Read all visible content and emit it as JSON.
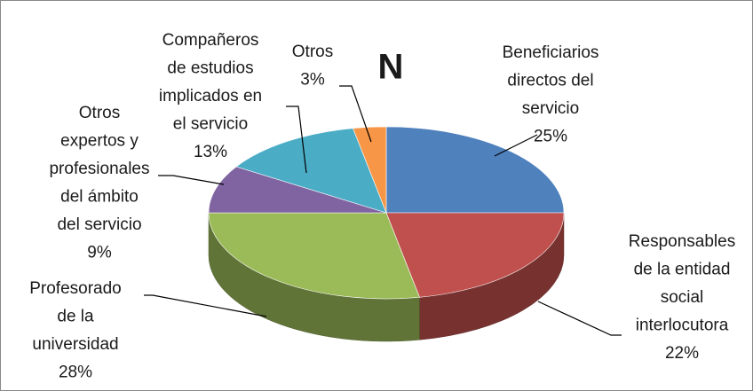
{
  "chart_data": {
    "type": "pie",
    "title": "N",
    "categories": [
      [
        "Beneficiarios",
        "directos del",
        "servicio"
      ],
      [
        "Responsables",
        "de la entidad",
        "social",
        "interlocutora"
      ],
      [
        "Profesorado",
        "de la",
        "universidad"
      ],
      [
        "Otros",
        "expertos y",
        "profesionales",
        "del ámbito",
        "del servicio"
      ],
      [
        "Compañeros",
        "de estudios",
        "implicados en",
        "el servicio"
      ],
      [
        "Otros"
      ]
    ],
    "values": [
      25,
      22,
      28,
      9,
      13,
      3
    ],
    "value_labels": [
      "25%",
      "22%",
      "28%",
      "9%",
      "13%",
      "3%"
    ],
    "colors": [
      "#4f81bd",
      "#c0504d",
      "#9bbb59",
      "#8064a2",
      "#4bacc6",
      "#f79646"
    ]
  }
}
